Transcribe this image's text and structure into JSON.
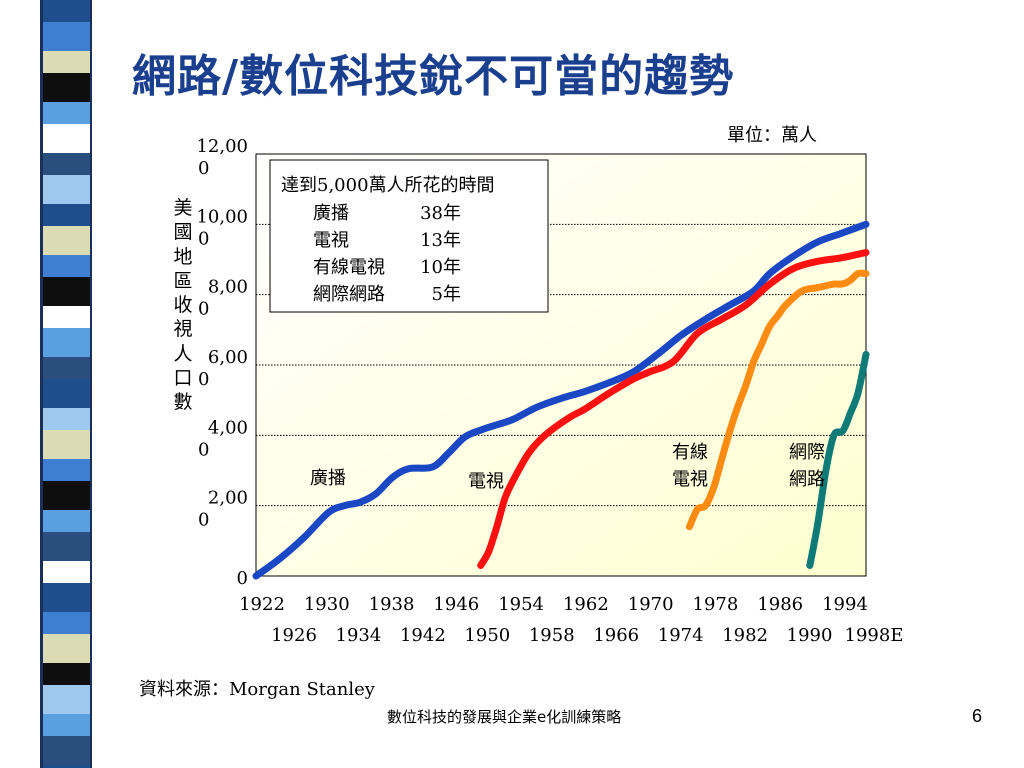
{
  "slide": {
    "title": "網路/數位科技銳不可當的趨勢",
    "unit": "單位：萬人",
    "source": "資料來源：Morgan Stanley",
    "footer": "數位科技的發展與企業e化訓練策略",
    "page_number": "6"
  },
  "colors": {
    "title": "#1a3f8f",
    "radio": "#1a47c4",
    "tv": "#ff1010",
    "cable": "#ff8c10",
    "internet": "#0f7b78",
    "plot_bg_top": "#ffffff",
    "plot_bg_bottom": "#ffffd0",
    "left_bar": [
      "#1f4e8c",
      "#3f7fd1",
      "#dcdcb4",
      "#0e0e0e",
      "#5aa0e0",
      "#ffffff",
      "#2a4f7e",
      "#9ec8ee"
    ]
  },
  "chart_data": {
    "type": "line",
    "ylabel": "美國地區收視人口數",
    "ylim": [
      0,
      12000
    ],
    "yticks": [
      "0",
      "2,000",
      "4,000",
      "6,000",
      "8,000",
      "10,000",
      "12,000"
    ],
    "xlim": [
      1922,
      1998
    ],
    "xticks_row1": [
      "1922",
      "1930",
      "1938",
      "1946",
      "1954",
      "1962",
      "1970",
      "1978",
      "1986",
      "1994"
    ],
    "xticks_row2": [
      "1926",
      "1934",
      "1942",
      "1950",
      "1958",
      "1966",
      "1974",
      "1982",
      "1990",
      "1998E"
    ],
    "grid": true,
    "annotation": {
      "title": "達到5,000萬人所花的時間",
      "rows": [
        {
          "label": "廣播",
          "value": "38年"
        },
        {
          "label": "電視",
          "value": "13年"
        },
        {
          "label": "有線電視",
          "value": "10年"
        },
        {
          "label": "網際網路",
          "value": "5年"
        }
      ]
    },
    "series": [
      {
        "name": "廣播",
        "color_key": "radio",
        "x": [
          1922,
          1925,
          1928,
          1931,
          1933,
          1935,
          1937,
          1939,
          1941,
          1944,
          1946,
          1948,
          1950,
          1952,
          1954,
          1957,
          1960,
          1963,
          1966,
          1969,
          1972,
          1975,
          1978,
          1981,
          1984,
          1986,
          1989,
          1992,
          1995,
          1998
        ],
        "y": [
          0,
          500,
          1100,
          1800,
          2000,
          2100,
          2350,
          2800,
          3050,
          3100,
          3500,
          3950,
          4150,
          4300,
          4450,
          4800,
          5050,
          5250,
          5500,
          5800,
          6300,
          6850,
          7300,
          7700,
          8100,
          8600,
          9100,
          9500,
          9750,
          10000
        ]
      },
      {
        "name": "電視",
        "color_key": "tv",
        "x": [
          1950,
          1951,
          1952,
          1953,
          1954,
          1956,
          1958,
          1961,
          1963,
          1966,
          1969,
          1971,
          1974,
          1977,
          1980,
          1983,
          1986,
          1989,
          1992,
          1995,
          1998
        ],
        "y": [
          300,
          700,
          1400,
          2200,
          2700,
          3500,
          4000,
          4500,
          4750,
          5200,
          5600,
          5800,
          6100,
          6900,
          7300,
          7700,
          8300,
          8750,
          8950,
          9050,
          9200
        ]
      },
      {
        "name": "有線電視",
        "color_key": "cable",
        "x": [
          1976,
          1977,
          1978,
          1979,
          1980,
          1981,
          1982,
          1983,
          1984,
          1985,
          1986,
          1987,
          1988,
          1990,
          1992,
          1994,
          1995,
          1996,
          1997,
          1998
        ],
        "y": [
          1400,
          1900,
          2000,
          2500,
          3300,
          4100,
          4800,
          5400,
          6100,
          6600,
          7100,
          7400,
          7700,
          8100,
          8200,
          8300,
          8300,
          8400,
          8600,
          8600
        ]
      },
      {
        "name": "網際網路",
        "color_key": "internet",
        "x": [
          1991,
          1992,
          1993,
          1994,
          1995,
          1995.5,
          1996,
          1997,
          1998
        ],
        "y": [
          300,
          1500,
          3000,
          4000,
          4100,
          4300,
          4600,
          5200,
          6300
        ]
      }
    ],
    "line_labels": [
      {
        "text": "廣播",
        "series": "廣播"
      },
      {
        "text": "電視",
        "series": "電視"
      },
      {
        "text": "有線 電視",
        "series": "有線電視"
      },
      {
        "text": "網際 網路",
        "series": "網際網路"
      }
    ]
  }
}
